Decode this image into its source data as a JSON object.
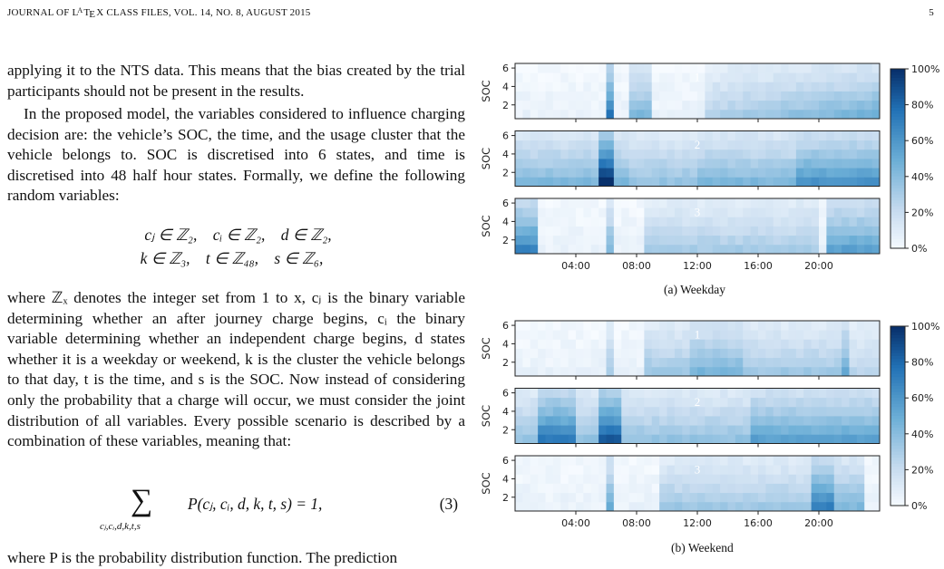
{
  "header": {
    "left": "JOURNAL OF LATEX CLASS FILES, VOL. 14, NO. 8, AUGUST 2015",
    "page_number": "5"
  },
  "text": {
    "p1": "applying it to the NTS data. This means that the bias created by the trial participants should not be present in the results.",
    "p2": "In the proposed model, the variables considered to influence charging decision are: the vehicle’s SOC, the time, and the usage cluster that the vehicle belongs to. SOC is discretised into 6 states, and time is discretised into 48 half hour states. Formally, we define the following random variables:",
    "eq1_row1": [
      "cⱼ ∈ ℤ₂,",
      "cᵢ ∈ ℤ₂,",
      "d ∈ ℤ₂,"
    ],
    "eq1_row2": [
      "k ∈ ℤ₃,",
      "t ∈ ℤ₄₈,",
      "s ∈ ℤ₆,"
    ],
    "p3": "where ℤₓ denotes the integer set from 1 to x, cⱼ is the binary variable determining whether an after journey charge begins, cᵢ the binary variable determining whether an independent charge begins, d states whether it is a weekday or weekend, k is the cluster the vehicle belongs to that day, t is the time, and s is the SOC. Now instead of considering only the probability that a charge will occur, we must consider the joint distribution of all variables. Every possible scenario is described by a combination of these variables, meaning that:",
    "eq2_sum": "∑",
    "eq2_sub": "cⱼ,cᵢ,d,k,t,s",
    "eq2_body": "P(cⱼ, cᵢ, d, k, t, s) = 1,",
    "eq2_num": "(3)",
    "p4": "where P is the probability distribution function. The prediction"
  },
  "figure": {
    "colorbar_ticks": [
      "100%",
      "80%",
      "60%",
      "40%",
      "20%",
      "0%"
    ],
    "y_ticks": [
      "6",
      "4",
      "2"
    ],
    "y_label": "SOC",
    "x_ticks": [
      "04:00",
      "08:00",
      "12:00",
      "16:00",
      "20:00"
    ],
    "cluster_labels": [
      "1",
      "2",
      "3"
    ],
    "captions": [
      "(a) Weekday",
      "(b) Weekend"
    ]
  },
  "chart_data": [
    {
      "type": "heatmap",
      "title": "(a) Weekday",
      "panels": [
        "1",
        "2",
        "3"
      ],
      "ylabel": "SOC",
      "xticks": [
        "04:00",
        "08:00",
        "12:00",
        "16:00",
        "20:00"
      ],
      "yticks": [
        "2",
        "4",
        "6"
      ],
      "colorbar": [
        "0%",
        "20%",
        "40%",
        "60%",
        "80%",
        "100%"
      ]
    },
    {
      "type": "heatmap",
      "title": "(b) Weekend",
      "panels": [
        "1",
        "2",
        "3"
      ],
      "ylabel": "SOC",
      "xticks": [
        "04:00",
        "08:00",
        "12:00",
        "16:00",
        "20:00"
      ],
      "yticks": [
        "2",
        "4",
        "6"
      ],
      "colorbar": [
        "0%",
        "20%",
        "40%",
        "60%",
        "80%",
        "100%"
      ]
    }
  ]
}
